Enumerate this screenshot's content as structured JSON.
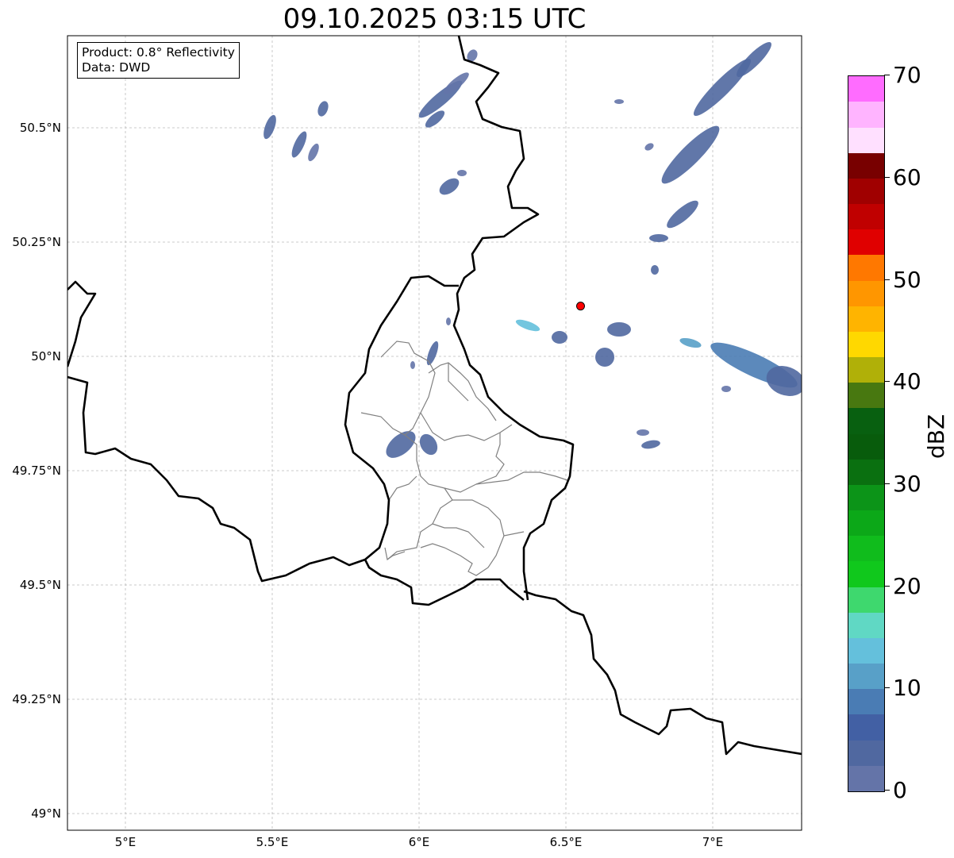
{
  "title": "09.10.2025 03:15 UTC",
  "legend": {
    "product": "Product: 0.8° Reflectivity",
    "data": "Data: DWD"
  },
  "map": {
    "lon_range": [
      4.8,
      7.3
    ],
    "lat_range": [
      48.96,
      50.7
    ],
    "lon_ticks": [
      "5°E",
      "5.5°E",
      "6°E",
      "6.5°E",
      "7°E"
    ],
    "lat_ticks": [
      "49°N",
      "49.25°N",
      "49.5°N",
      "49.75°N",
      "50°N",
      "50.25°N",
      "50.5°N"
    ],
    "marker": {
      "lon": 6.55,
      "lat": 50.11,
      "color": "#ff0000"
    }
  },
  "colorbar": {
    "label": "dBZ",
    "ticks": [
      "0",
      "10",
      "20",
      "30",
      "40",
      "50",
      "60",
      "70"
    ],
    "range": [
      0,
      70
    ],
    "step": 2.5,
    "colors": [
      "#6474a8",
      "#5068a0",
      "#4260a4",
      "#4a7cb4",
      "#58a0c8",
      "#64c0dc",
      "#60d8c4",
      "#3ed86e",
      "#10c81c",
      "#10bc1c",
      "#0ca818",
      "#0c9418",
      "#0a7010",
      "#085c0c",
      "#086010",
      "#487810",
      "#b0b008",
      "#ffd800",
      "#ffb400",
      "#ff9600",
      "#ff7800",
      "#e00000",
      "#c00000",
      "#a00000",
      "#780000",
      "#ffe0ff",
      "#ffb4ff",
      "#ff6cff",
      "#e838ee"
    ]
  }
}
